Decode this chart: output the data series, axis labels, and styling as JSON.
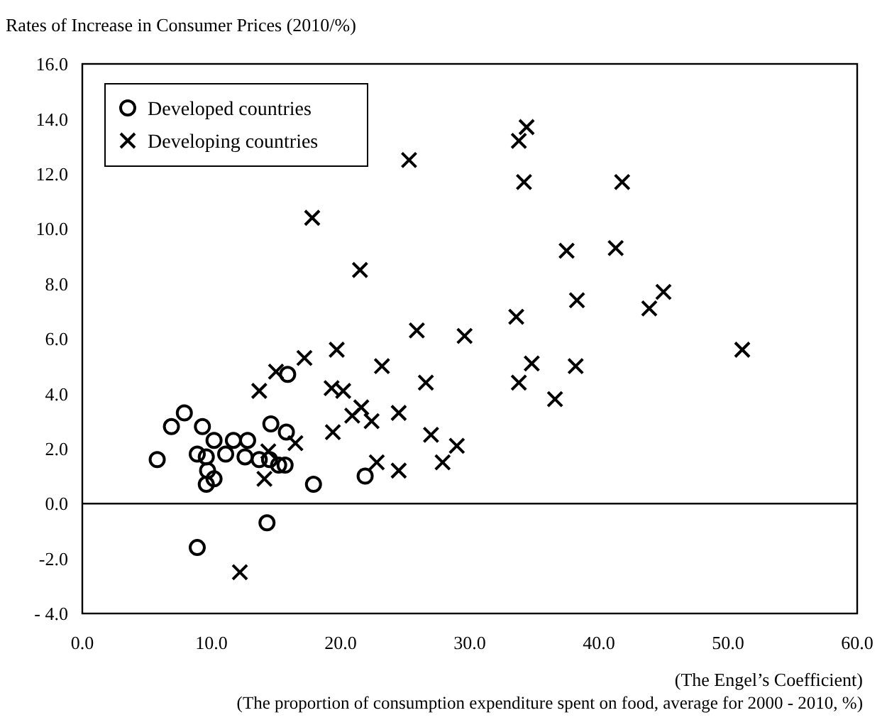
{
  "chart_data": {
    "type": "scatter",
    "ylabel": "Rates of Increase in Consumer Prices (2010/%)",
    "xlabel": "(The Engel’s Coefficient)",
    "annotations": [
      "(The proportion of consumption expenditure spent on food, average for 2000 - 2010, %)"
    ],
    "xlim": [
      0,
      60
    ],
    "xticks": [
      {
        "value": 0,
        "label": "0.0"
      },
      {
        "value": 10,
        "label": "10.0"
      },
      {
        "value": 20,
        "label": "20.0"
      },
      {
        "value": 30,
        "label": "30.0"
      },
      {
        "value": 40,
        "label": "40.0"
      },
      {
        "value": 50,
        "label": "50.0"
      },
      {
        "value": 60,
        "label": "60.0"
      }
    ],
    "ylim": [
      -4,
      16
    ],
    "yticks": [
      {
        "value": -4,
        "label": "-  4.0"
      },
      {
        "value": -2,
        "label": "-2.0"
      },
      {
        "value": 0,
        "label": "0.0"
      },
      {
        "value": 2,
        "label": "2.0"
      },
      {
        "value": 4,
        "label": "4.0"
      },
      {
        "value": 6,
        "label": "6.0"
      },
      {
        "value": 8,
        "label": "8.0"
      },
      {
        "value": 10,
        "label": "10.0"
      },
      {
        "value": 12,
        "label": "12.0"
      },
      {
        "value": 14,
        "label": "14.0"
      },
      {
        "value": 16,
        "label": "16.0"
      }
    ],
    "grid": false,
    "legend": "top left",
    "ref_lines": [
      {
        "axis": "y",
        "value": 0,
        "color": "#000000"
      }
    ],
    "series": [
      {
        "name": "Developed countries",
        "color": "#000000",
        "marker": "circle",
        "x": [
          5.8,
          6.9,
          7.9,
          9.3,
          8.9,
          9.6,
          9.7,
          10.2,
          9.6,
          10.2,
          11.1,
          11.7,
          12.8,
          12.6,
          13.7,
          14.6,
          15.8,
          15.2,
          15.7,
          17.9,
          14.3,
          8.9,
          15.9,
          21.9,
          14.5
        ],
        "values": [
          1.6,
          2.8,
          3.3,
          2.8,
          1.8,
          1.7,
          1.2,
          0.9,
          0.7,
          2.3,
          1.8,
          2.3,
          2.3,
          1.7,
          1.6,
          2.9,
          2.6,
          1.4,
          1.4,
          0.7,
          -0.7,
          -1.6,
          4.7,
          1.0,
          1.6
        ]
      },
      {
        "name": "Developing countries",
        "color": "#000000",
        "marker": "cross",
        "x": [
          12.2,
          13.7,
          15.0,
          17.2,
          19.4,
          16.5,
          14.4,
          14.1,
          17.8,
          21.5,
          25.3,
          25.9,
          29.6,
          19.7,
          23.2,
          19.3,
          20.2,
          26.6,
          21.6,
          20.9,
          22.4,
          24.5,
          27.0,
          29.0,
          27.9,
          22.8,
          24.5,
          34.4,
          33.8,
          34.2,
          41.8,
          37.5,
          41.3,
          38.3,
          45.0,
          43.9,
          33.6,
          51.1,
          34.8,
          38.2,
          33.8,
          36.6
        ],
        "values": [
          -2.5,
          4.1,
          4.8,
          5.3,
          2.6,
          2.2,
          1.9,
          0.9,
          10.4,
          8.5,
          12.5,
          6.3,
          6.1,
          5.6,
          5.0,
          4.2,
          4.1,
          4.4,
          3.5,
          3.2,
          3.0,
          3.3,
          2.5,
          2.1,
          1.5,
          1.5,
          1.2,
          13.7,
          13.2,
          11.7,
          11.7,
          9.2,
          9.3,
          7.4,
          7.7,
          7.1,
          6.8,
          5.6,
          5.1,
          5.0,
          4.4,
          3.8
        ]
      }
    ]
  }
}
